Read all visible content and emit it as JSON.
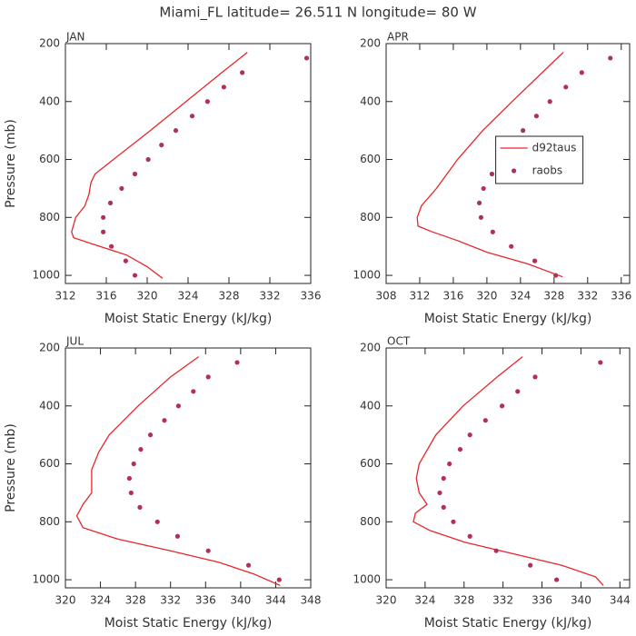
{
  "title": "Miami_FL   latitude= 26.511 N longitude= 80 W",
  "chart_data": [
    {
      "type": "line",
      "title": "JAN",
      "xlabel": "Moist Static Energy (kJ/kg)",
      "ylabel": "Pressure (mb)",
      "xlim": [
        312,
        336
      ],
      "xticks": [
        312,
        316,
        320,
        324,
        328,
        332,
        336
      ],
      "ylim": [
        1028,
        200
      ],
      "yticks": [
        200,
        400,
        600,
        800,
        1000
      ],
      "series": [
        {
          "style": "line",
          "color": "#e8252a",
          "x": [
            329.8,
            327.3,
            323.8,
            320.3,
            316.7,
            314.9,
            314.5,
            314.3,
            313.9,
            313.0,
            312.6,
            312.8,
            314.5,
            318.0,
            320.0,
            321.5
          ],
          "y": [
            230,
            300,
            400,
            500,
            600,
            650,
            680,
            720,
            760,
            800,
            850,
            870,
            890,
            930,
            970,
            1010
          ]
        },
        {
          "style": "markers",
          "color": "#b0305a",
          "x": [
            335.6,
            329.3,
            327.5,
            325.9,
            324.4,
            322.8,
            321.4,
            320.1,
            318.8,
            317.5,
            316.4,
            315.7,
            315.7,
            316.5,
            317.9,
            318.8
          ],
          "y": [
            250,
            300,
            350,
            400,
            450,
            500,
            550,
            600,
            650,
            700,
            750,
            800,
            850,
            900,
            950,
            1000
          ]
        }
      ]
    },
    {
      "type": "line",
      "title": "APR",
      "xlabel": "Moist Static Energy (kJ/kg)",
      "xlim": [
        308,
        337
      ],
      "xticks": [
        308,
        312,
        316,
        320,
        324,
        328,
        332,
        336
      ],
      "ylim": [
        1028,
        200
      ],
      "yticks": [
        200,
        400,
        600,
        800,
        1000
      ],
      "legend": "center right",
      "series": [
        {
          "name": "d92taus",
          "style": "line",
          "color": "#e8252a",
          "x": [
            329.1,
            327.3,
            323.0,
            319.5,
            316.5,
            314.0,
            312.2,
            311.7,
            311.8,
            313.5,
            316.5,
            320.0,
            324.8,
            329.0
          ],
          "y": [
            230,
            280,
            400,
            500,
            600,
            700,
            760,
            800,
            830,
            850,
            880,
            920,
            960,
            1005
          ]
        },
        {
          "name": "raobs",
          "style": "markers",
          "color": "#b0305a",
          "x": [
            334.7,
            331.3,
            329.4,
            327.5,
            325.9,
            324.3,
            323.0,
            321.8,
            320.6,
            319.6,
            319.1,
            319.3,
            320.7,
            322.9,
            325.7,
            328.2
          ],
          "y": [
            250,
            300,
            350,
            400,
            450,
            500,
            550,
            600,
            650,
            700,
            750,
            800,
            850,
            900,
            950,
            1000
          ]
        }
      ]
    },
    {
      "type": "line",
      "title": "JUL",
      "xlabel": "Moist Static Energy (kJ/kg)",
      "ylabel": "Pressure (mb)",
      "xlim": [
        320,
        348
      ],
      "xticks": [
        320,
        324,
        328,
        332,
        336,
        340,
        344,
        348
      ],
      "ylim": [
        1028,
        200
      ],
      "yticks": [
        200,
        400,
        600,
        800,
        1000
      ],
      "series": [
        {
          "style": "line",
          "color": "#e8252a",
          "x": [
            335.2,
            332.0,
            328.3,
            325.0,
            323.8,
            323.0,
            323.0,
            322.0,
            321.3,
            322.0,
            326.0,
            332.0,
            337.5,
            341.5,
            344.5
          ],
          "y": [
            230,
            300,
            400,
            500,
            560,
            620,
            700,
            740,
            780,
            820,
            860,
            900,
            940,
            980,
            1020
          ]
        },
        {
          "style": "markers",
          "color": "#b0305a",
          "x": [
            339.6,
            336.3,
            334.6,
            332.9,
            331.3,
            329.7,
            328.6,
            327.8,
            327.3,
            327.5,
            328.5,
            330.5,
            332.8,
            336.3,
            340.9,
            344.4
          ],
          "y": [
            250,
            300,
            350,
            400,
            450,
            500,
            550,
            600,
            650,
            700,
            750,
            800,
            850,
            900,
            950,
            1000
          ]
        }
      ]
    },
    {
      "type": "line",
      "title": "OCT",
      "xlabel": "Moist Static Energy (kJ/kg)",
      "xlim": [
        320,
        345
      ],
      "xticks": [
        320,
        324,
        328,
        332,
        336,
        340,
        344
      ],
      "ylim": [
        1028,
        200
      ],
      "yticks": [
        200,
        400,
        600,
        800,
        1000
      ],
      "series": [
        {
          "style": "line",
          "color": "#e8252a",
          "x": [
            334.0,
            331.4,
            327.9,
            325.1,
            323.4,
            323.1,
            323.4,
            324.2,
            323.0,
            322.8,
            324.5,
            328.0,
            333.0,
            338.0,
            341.5,
            342.3
          ],
          "y": [
            230,
            300,
            400,
            500,
            600,
            650,
            700,
            740,
            770,
            800,
            830,
            870,
            910,
            950,
            990,
            1020
          ]
        },
        {
          "style": "markers",
          "color": "#b0305a",
          "x": [
            342.0,
            335.3,
            333.5,
            331.9,
            330.2,
            328.6,
            327.6,
            326.5,
            325.9,
            325.5,
            325.9,
            326.9,
            328.6,
            331.3,
            334.8,
            337.5
          ],
          "y": [
            250,
            300,
            350,
            400,
            450,
            500,
            550,
            600,
            650,
            700,
            750,
            800,
            850,
            900,
            950,
            1000
          ]
        }
      ]
    }
  ]
}
